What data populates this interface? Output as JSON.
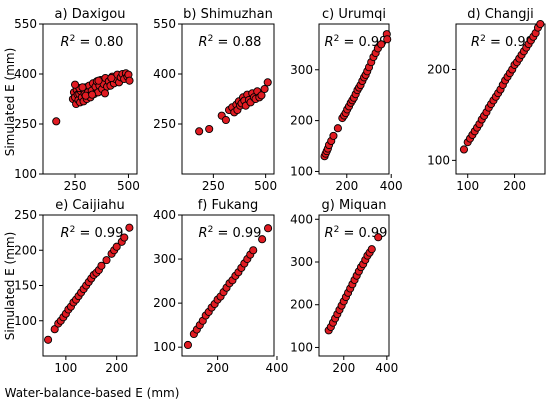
{
  "figure": {
    "ylabel_top": "Simulated E (mm)",
    "ylabel_bottom": "Simulated E (mm)",
    "xlabel": "Water-balance-based E (mm)"
  },
  "chart_data": [
    {
      "type": "scatter",
      "title": "a) Daxigou",
      "annotation": "R^2 = 0.80",
      "xlim": [
        100,
        540
      ],
      "ylim": [
        100,
        550
      ],
      "xticks": [
        250,
        500
      ],
      "yticks": [
        100,
        250,
        400,
        550
      ],
      "x": [
        162,
        240,
        245,
        250,
        255,
        258,
        262,
        266,
        270,
        274,
        278,
        282,
        286,
        290,
        295,
        300,
        305,
        310,
        316,
        322,
        328,
        334,
        340,
        346,
        352,
        358,
        364,
        370,
        377,
        384,
        392,
        400,
        408,
        416,
        424,
        432,
        440,
        448,
        456,
        464,
        472,
        480,
        488,
        495,
        500,
        505,
        360,
        300,
        270,
        330,
        390,
        420,
        250,
        285
      ],
      "y": [
        258,
        325,
        345,
        330,
        310,
        352,
        338,
        322,
        340,
        315,
        348,
        330,
        355,
        318,
        340,
        360,
        325,
        345,
        365,
        330,
        350,
        372,
        340,
        362,
        378,
        345,
        365,
        382,
        355,
        370,
        388,
        362,
        378,
        365,
        392,
        372,
        385,
        398,
        375,
        390,
        400,
        385,
        402,
        392,
        398,
        380,
        380,
        335,
        358,
        338,
        342,
        388,
        368,
        360
      ]
    },
    {
      "type": "scatter",
      "title": "b) Shimuzhan",
      "annotation": "R^2 = 0.88",
      "xlim": [
        100,
        540
      ],
      "ylim": [
        100,
        550
      ],
      "xticks": [
        250,
        500
      ],
      "yticks": [
        250,
        400,
        550
      ],
      "x": [
        182,
        230,
        290,
        310,
        325,
        340,
        350,
        360,
        365,
        372,
        378,
        385,
        392,
        398,
        405,
        412,
        420,
        428,
        436,
        444,
        452,
        460,
        470,
        480,
        495,
        510
      ],
      "y": [
        228,
        235,
        275,
        262,
        292,
        300,
        285,
        308,
        292,
        318,
        305,
        312,
        330,
        320,
        305,
        338,
        322,
        315,
        342,
        330,
        325,
        348,
        330,
        336,
        355,
        375
      ]
    },
    {
      "type": "scatter",
      "title": "c) Urumqi",
      "annotation": "R^2 = 0.99",
      "xlim": [
        75,
        390
      ],
      "ylim": [
        95,
        390
      ],
      "xticks": [
        200,
        400
      ],
      "yticks": [
        100,
        200,
        300
      ],
      "x": [
        100,
        105,
        110,
        115,
        120,
        130,
        140,
        160,
        180,
        188,
        195,
        202,
        210,
        218,
        225,
        232,
        240,
        248,
        255,
        262,
        270,
        278,
        285,
        292,
        300,
        310,
        320,
        330,
        340,
        355,
        380,
        382
      ],
      "y": [
        130,
        135,
        140,
        145,
        152,
        160,
        170,
        185,
        205,
        210,
        215,
        222,
        228,
        235,
        240,
        245,
        252,
        260,
        265,
        270,
        278,
        285,
        290,
        297,
        305,
        315,
        325,
        333,
        342,
        350,
        370,
        360
      ]
    },
    {
      "type": "scatter",
      "title": "d) Changji",
      "annotation": "R^2 = 0.99",
      "xlim": [
        75,
        265
      ],
      "ylim": [
        85,
        250
      ],
      "xticks": [
        100,
        200
      ],
      "yticks": [
        100,
        200
      ],
      "x": [
        92,
        100,
        105,
        110,
        115,
        120,
        125,
        130,
        135,
        140,
        145,
        150,
        155,
        160,
        165,
        170,
        175,
        180,
        185,
        190,
        195,
        200,
        205,
        210,
        215,
        220,
        225,
        230,
        235,
        240,
        245,
        250,
        255
      ],
      "y": [
        112,
        120,
        124,
        128,
        132,
        136,
        140,
        145,
        149,
        153,
        158,
        162,
        166,
        170,
        174,
        178,
        183,
        188,
        192,
        196,
        200,
        205,
        208,
        212,
        216,
        220,
        224,
        228,
        232,
        236,
        240,
        246,
        250
      ]
    },
    {
      "type": "scatter",
      "title": "e) Caijiahu",
      "annotation": "R^2 = 0.99",
      "xlim": [
        55,
        240
      ],
      "ylim": [
        50,
        250
      ],
      "xticks": [
        100,
        200
      ],
      "yticks": [
        100,
        150,
        200,
        250
      ],
      "x": [
        65,
        78,
        85,
        90,
        95,
        100,
        105,
        110,
        115,
        120,
        125,
        130,
        135,
        140,
        145,
        150,
        155,
        160,
        165,
        170,
        180,
        190,
        195,
        200,
        210,
        215,
        225
      ],
      "y": [
        73,
        88,
        96,
        100,
        105,
        110,
        116,
        120,
        126,
        130,
        135,
        140,
        145,
        150,
        155,
        160,
        165,
        168,
        172,
        178,
        186,
        195,
        200,
        205,
        212,
        218,
        232
      ]
    },
    {
      "type": "scatter",
      "title": "f) Fukang",
      "annotation": "R^2 = 0.99",
      "xlim": [
        80,
        390
      ],
      "ylim": [
        80,
        400
      ],
      "xticks": [
        200,
        400
      ],
      "yticks": [
        100,
        200,
        300,
        400
      ],
      "x": [
        100,
        120,
        130,
        140,
        150,
        160,
        170,
        180,
        190,
        200,
        210,
        220,
        230,
        240,
        250,
        260,
        270,
        280,
        290,
        300,
        310,
        320,
        350,
        370
      ],
      "y": [
        105,
        130,
        140,
        150,
        160,
        172,
        180,
        190,
        198,
        208,
        215,
        225,
        235,
        245,
        252,
        262,
        270,
        280,
        290,
        300,
        310,
        320,
        345,
        370
      ]
    },
    {
      "type": "scatter",
      "title": "g) Miquan",
      "annotation": "R^2 = 0.99",
      "xlim": [
        85,
        410
      ],
      "ylim": [
        80,
        410
      ],
      "xticks": [
        200,
        400
      ],
      "yticks": [
        100,
        200,
        300,
        400
      ],
      "x": [
        130,
        140,
        150,
        160,
        170,
        180,
        190,
        200,
        210,
        220,
        230,
        240,
        250,
        260,
        270,
        280,
        290,
        300,
        310,
        320,
        330,
        360
      ],
      "y": [
        140,
        148,
        158,
        168,
        178,
        188,
        198,
        208,
        218,
        228,
        238,
        248,
        258,
        268,
        278,
        288,
        295,
        305,
        315,
        322,
        330,
        358
      ]
    }
  ]
}
